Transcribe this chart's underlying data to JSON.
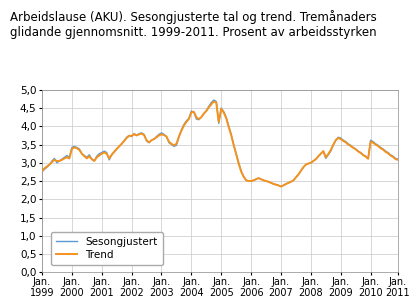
{
  "title_line1": "Arbeidslause (AKU). Sesongjusterte tal og trend. Tremånaders",
  "title_line2": "glidande gjennomsnitt. 1999-2011. Prosent av arbeidsstyrken",
  "ylim": [
    0.0,
    5.0
  ],
  "yticks": [
    0.0,
    0.5,
    1.0,
    1.5,
    2.0,
    2.5,
    3.0,
    3.5,
    4.0,
    4.5,
    5.0
  ],
  "line_color_seas": "#5b9bd5",
  "line_color_trend": "#f5921e",
  "legend_labels": [
    "Sesongjustert",
    "Trend"
  ],
  "background_color": "#ffffff",
  "grid_color": "#c8c8c8",
  "title_fontsize": 8.5,
  "tick_fontsize": 7.5,
  "sesongjustert": [
    2.75,
    2.82,
    2.88,
    2.95,
    3.05,
    3.12,
    3.0,
    3.05,
    3.1,
    3.15,
    3.2,
    3.15,
    3.42,
    3.45,
    3.42,
    3.38,
    3.25,
    3.2,
    3.15,
    3.22,
    3.1,
    3.05,
    3.18,
    3.25,
    3.28,
    3.32,
    3.28,
    3.08,
    3.22,
    3.3,
    3.38,
    3.45,
    3.52,
    3.6,
    3.7,
    3.75,
    3.72,
    3.8,
    3.75,
    3.8,
    3.82,
    3.78,
    3.6,
    3.55,
    3.62,
    3.65,
    3.72,
    3.78,
    3.82,
    3.78,
    3.72,
    3.55,
    3.5,
    3.45,
    3.48,
    3.7,
    3.9,
    4.05,
    4.15,
    4.22,
    4.42,
    4.38,
    4.2,
    4.18,
    4.25,
    4.35,
    4.42,
    4.55,
    4.65,
    4.72,
    4.68,
    4.08,
    4.5,
    4.4,
    4.25,
    4.0,
    3.78,
    3.5,
    3.25,
    3.0,
    2.78,
    2.62,
    2.52,
    2.5,
    2.5,
    2.52,
    2.55,
    2.58,
    2.55,
    2.52,
    2.5,
    2.48,
    2.45,
    2.42,
    2.4,
    2.38,
    2.35,
    2.38,
    2.42,
    2.45,
    2.48,
    2.52,
    2.6,
    2.68,
    2.78,
    2.88,
    2.95,
    2.98,
    3.0,
    3.05,
    3.1,
    3.18,
    3.25,
    3.32,
    3.12,
    3.22,
    3.32,
    3.48,
    3.62,
    3.7,
    3.68,
    3.62,
    3.58,
    3.52,
    3.48,
    3.42,
    3.38,
    3.32,
    3.28,
    3.22,
    3.18,
    3.12,
    3.62,
    3.58,
    3.52,
    3.48,
    3.42,
    3.38,
    3.32,
    3.28,
    3.22,
    3.18,
    3.12,
    3.1
  ],
  "trend": [
    2.78,
    2.85,
    2.9,
    2.95,
    3.02,
    3.08,
    3.05,
    3.05,
    3.08,
    3.12,
    3.15,
    3.12,
    3.38,
    3.42,
    3.4,
    3.35,
    3.25,
    3.18,
    3.12,
    3.18,
    3.1,
    3.05,
    3.15,
    3.2,
    3.25,
    3.28,
    3.25,
    3.12,
    3.22,
    3.3,
    3.38,
    3.45,
    3.52,
    3.6,
    3.68,
    3.74,
    3.74,
    3.78,
    3.75,
    3.78,
    3.8,
    3.76,
    3.62,
    3.56,
    3.62,
    3.65,
    3.7,
    3.75,
    3.78,
    3.76,
    3.72,
    3.58,
    3.52,
    3.48,
    3.52,
    3.72,
    3.88,
    4.02,
    4.12,
    4.2,
    4.38,
    4.4,
    4.25,
    4.2,
    4.25,
    4.35,
    4.42,
    4.52,
    4.6,
    4.68,
    4.65,
    4.12,
    4.48,
    4.38,
    4.22,
    3.98,
    3.76,
    3.48,
    3.24,
    2.98,
    2.76,
    2.62,
    2.52,
    2.5,
    2.5,
    2.52,
    2.55,
    2.58,
    2.55,
    2.52,
    2.5,
    2.48,
    2.45,
    2.42,
    2.4,
    2.38,
    2.35,
    2.38,
    2.42,
    2.45,
    2.48,
    2.52,
    2.6,
    2.68,
    2.78,
    2.88,
    2.95,
    2.98,
    3.0,
    3.05,
    3.1,
    3.18,
    3.25,
    3.32,
    3.15,
    3.24,
    3.35,
    3.5,
    3.62,
    3.68,
    3.65,
    3.6,
    3.56,
    3.5,
    3.46,
    3.41,
    3.37,
    3.31,
    3.27,
    3.21,
    3.17,
    3.11,
    3.58,
    3.55,
    3.5,
    3.46,
    3.4,
    3.36,
    3.3,
    3.26,
    3.2,
    3.16,
    3.1,
    3.08
  ],
  "x_tick_positions": [
    0,
    12,
    24,
    36,
    48,
    60,
    72,
    84,
    96,
    108,
    120,
    132,
    143
  ],
  "x_tick_labels": [
    "Jan.\n1999",
    "Jan.\n2000",
    "Jan.\n2001",
    "Jan.\n2002",
    "Jan.\n2003",
    "Jan.\n2004",
    "Jan.\n2005",
    "Jan.\n2006",
    "Jan.\n2007",
    "Jan.\n2008",
    "Jan.\n2009",
    "Jan.\n2010",
    "Jan.\n2011"
  ]
}
